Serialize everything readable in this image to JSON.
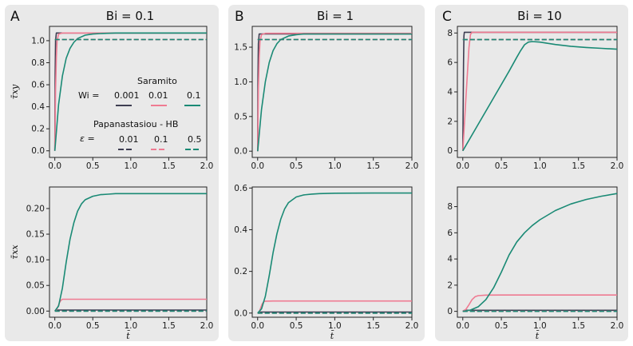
{
  "figure": {
    "colors": {
      "wi_0_001": "#3e3e52",
      "wi_0_01": "#ef7b92",
      "wi_0_1": "#1a8a75"
    },
    "ylabel_top": "τ̄xy",
    "ylabel_bottom": "τ̄xx",
    "xlabel": "t̄"
  },
  "legend": {
    "saramito_title": "Saramito",
    "wi_label": "Wi =",
    "wi_values": [
      "0.001",
      "0.01",
      "0.1"
    ],
    "ph_title": "Papanastasiou - HB",
    "eps_label": "ε =",
    "eps_values": [
      "0.01",
      "0.1",
      "0.5"
    ]
  },
  "chart_data": [
    {
      "panel": "A",
      "title": "Bi = 0.1",
      "row": "top",
      "type": "line",
      "ylabel": "τ̄xy",
      "xlabel": "",
      "xlim": [
        -0.07,
        2.0
      ],
      "ylim": [
        -0.06,
        1.13
      ],
      "xticks": [
        0.0,
        0.5,
        1.0,
        1.5,
        2.0
      ],
      "xticklabels": [
        "0.0",
        "0.5",
        "1.0",
        "1.5",
        "2.0"
      ],
      "yticks": [
        0.0,
        0.2,
        0.4,
        0.6,
        0.8,
        1.0
      ],
      "yticklabels": [
        "0.0",
        "0.2",
        "0.4",
        "0.6",
        "0.8",
        "1.0"
      ],
      "series": [
        {
          "name": "Saramito Wi=0.001",
          "style": "solid",
          "color": "#3e3e52",
          "x": [
            0,
            0.005,
            0.01,
            0.02,
            2.0
          ],
          "y": [
            0,
            0.7,
            1.0,
            1.07,
            1.07
          ]
        },
        {
          "name": "Saramito Wi=0.01",
          "style": "solid",
          "color": "#ef7b92",
          "x": [
            0,
            0.01,
            0.02,
            0.03,
            0.05,
            0.1,
            2.0
          ],
          "y": [
            0,
            0.55,
            0.85,
            1.0,
            1.06,
            1.07,
            1.07
          ]
        },
        {
          "name": "Saramito Wi=0.1",
          "style": "solid",
          "color": "#1a8a75",
          "x": [
            0,
            0.05,
            0.1,
            0.15,
            0.2,
            0.25,
            0.3,
            0.4,
            0.5,
            0.6,
            0.8,
            1.0,
            1.5,
            2.0
          ],
          "y": [
            0,
            0.42,
            0.68,
            0.84,
            0.93,
            0.985,
            1.02,
            1.05,
            1.06,
            1.065,
            1.07,
            1.07,
            1.07,
            1.07
          ]
        },
        {
          "name": "Papanastasiou-HB eps=0.01",
          "style": "dashed",
          "color": "#3e3e52",
          "x": [
            0.0,
            2.0
          ],
          "y": [
            1.01,
            1.01
          ]
        },
        {
          "name": "Papanastasiou-HB eps=0.1",
          "style": "dashed",
          "color": "#ef7b92",
          "x": [
            0.0,
            2.0
          ],
          "y": [
            1.01,
            1.01
          ]
        },
        {
          "name": "Papanastasiou-HB eps=0.5",
          "style": "dashed",
          "color": "#1a8a75",
          "x": [
            0.0,
            2.0
          ],
          "y": [
            1.01,
            1.01
          ]
        }
      ]
    },
    {
      "panel": "B",
      "title": "Bi = 1",
      "row": "top",
      "type": "line",
      "ylabel": "",
      "xlabel": "",
      "xlim": [
        -0.07,
        2.0
      ],
      "ylim": [
        -0.09,
        1.8
      ],
      "xticks": [
        0.0,
        0.5,
        1.0,
        1.5,
        2.0
      ],
      "xticklabels": [
        "0.0",
        "0.5",
        "1.0",
        "1.5",
        "2.0"
      ],
      "yticks": [
        0.0,
        0.5,
        1.0,
        1.5
      ],
      "yticklabels": [
        "0.0",
        "0.5",
        "1.0",
        "1.5"
      ],
      "series": [
        {
          "name": "Saramito Wi=0.001",
          "style": "solid",
          "color": "#3e3e52",
          "x": [
            0,
            0.005,
            0.01,
            0.02,
            2.0
          ],
          "y": [
            0,
            1.1,
            1.55,
            1.69,
            1.69
          ]
        },
        {
          "name": "Saramito Wi=0.01",
          "style": "solid",
          "color": "#ef7b92",
          "x": [
            0,
            0.01,
            0.02,
            0.03,
            0.05,
            0.1,
            2.0
          ],
          "y": [
            0,
            0.9,
            1.35,
            1.58,
            1.68,
            1.7,
            1.7
          ]
        },
        {
          "name": "Saramito Wi=0.1",
          "style": "solid",
          "color": "#1a8a75",
          "x": [
            0,
            0.05,
            0.1,
            0.15,
            0.2,
            0.25,
            0.3,
            0.4,
            0.5,
            0.6,
            0.8,
            1.0,
            1.5,
            2.0
          ],
          "y": [
            0,
            0.6,
            1.0,
            1.28,
            1.45,
            1.55,
            1.61,
            1.66,
            1.68,
            1.69,
            1.69,
            1.69,
            1.69,
            1.69
          ]
        },
        {
          "name": "Papanastasiou-HB eps=0.01",
          "style": "dashed",
          "color": "#3e3e52",
          "x": [
            0.0,
            2.0
          ],
          "y": [
            1.61,
            1.61
          ]
        },
        {
          "name": "Papanastasiou-HB eps=0.1",
          "style": "dashed",
          "color": "#ef7b92",
          "x": [
            0.0,
            2.0
          ],
          "y": [
            1.61,
            1.61
          ]
        },
        {
          "name": "Papanastasiou-HB eps=0.5",
          "style": "dashed",
          "color": "#1a8a75",
          "x": [
            0.0,
            2.0
          ],
          "y": [
            1.61,
            1.61
          ]
        }
      ]
    },
    {
      "panel": "C",
      "title": "Bi = 10",
      "row": "top",
      "type": "line",
      "ylabel": "",
      "xlabel": "",
      "xlim": [
        -0.07,
        2.0
      ],
      "ylim": [
        -0.45,
        8.45
      ],
      "xticks": [
        0.0,
        0.5,
        1.0,
        1.5,
        2.0
      ],
      "xticklabels": [
        "0.0",
        "0.5",
        "1.0",
        "1.5",
        "2.0"
      ],
      "yticks": [
        0,
        2,
        4,
        6,
        8
      ],
      "yticklabels": [
        "0",
        "2",
        "4",
        "6",
        "8"
      ],
      "series": [
        {
          "name": "Saramito Wi=0.001",
          "style": "solid",
          "color": "#3e3e52",
          "x": [
            0,
            0.01,
            0.015,
            0.02,
            2.0
          ],
          "y": [
            0,
            6.0,
            7.8,
            8.05,
            8.05
          ]
        },
        {
          "name": "Saramito Wi=0.01",
          "style": "solid",
          "color": "#ef7b92",
          "x": [
            0,
            0.04,
            0.08,
            0.1,
            0.12,
            2.0
          ],
          "y": [
            0,
            3.5,
            7.0,
            7.9,
            8.05,
            8.05
          ]
        },
        {
          "name": "Saramito Wi=0.1",
          "style": "solid",
          "color": "#1a8a75",
          "x": [
            0,
            0.2,
            0.4,
            0.6,
            0.7,
            0.75,
            0.8,
            0.85,
            0.9,
            1.0,
            1.1,
            1.2,
            1.4,
            1.6,
            1.8,
            2.0
          ],
          "y": [
            0,
            1.8,
            3.6,
            5.4,
            6.35,
            6.8,
            7.2,
            7.38,
            7.42,
            7.38,
            7.3,
            7.22,
            7.1,
            7.02,
            6.96,
            6.9
          ]
        },
        {
          "name": "Papanastasiou-HB eps=0.01",
          "style": "dashed",
          "color": "#3e3e52",
          "x": [
            0.0,
            2.0
          ],
          "y": [
            7.55,
            7.55
          ]
        },
        {
          "name": "Papanastasiou-HB eps=0.1",
          "style": "dashed",
          "color": "#ef7b92",
          "x": [
            0.0,
            2.0
          ],
          "y": [
            7.55,
            7.55
          ]
        },
        {
          "name": "Papanastasiou-HB eps=0.5",
          "style": "dashed",
          "color": "#1a8a75",
          "x": [
            0.0,
            2.0
          ],
          "y": [
            7.55,
            7.55
          ]
        }
      ]
    },
    {
      "panel": "A",
      "title": "",
      "row": "bottom",
      "type": "line",
      "ylabel": "τ̄xx",
      "xlabel": "t̄",
      "xlim": [
        -0.07,
        2.0
      ],
      "ylim": [
        -0.012,
        0.242
      ],
      "xticks": [
        0.0,
        0.5,
        1.0,
        1.5,
        2.0
      ],
      "xticklabels": [
        "0.0",
        "0.5",
        "1.0",
        "1.5",
        "2.0"
      ],
      "yticks": [
        0.0,
        0.05,
        0.1,
        0.15,
        0.2
      ],
      "yticklabels": [
        "0.00",
        "0.05",
        "0.10",
        "0.15",
        "0.20"
      ],
      "series": [
        {
          "name": "Saramito Wi=0.001",
          "style": "solid",
          "color": "#3e3e52",
          "x": [
            0,
            0.02,
            2.0
          ],
          "y": [
            0,
            0.002,
            0.002
          ]
        },
        {
          "name": "Saramito Wi=0.01",
          "style": "solid",
          "color": "#ef7b92",
          "x": [
            0,
            0.02,
            0.04,
            0.06,
            0.08,
            0.1,
            2.0
          ],
          "y": [
            0,
            0.002,
            0.008,
            0.016,
            0.021,
            0.023,
            0.023
          ]
        },
        {
          "name": "Saramito Wi=0.1",
          "style": "solid",
          "color": "#1a8a75",
          "x": [
            0,
            0.05,
            0.1,
            0.15,
            0.2,
            0.25,
            0.3,
            0.35,
            0.4,
            0.5,
            0.6,
            0.7,
            0.8,
            1.0,
            1.5,
            2.0
          ],
          "y": [
            0,
            0.01,
            0.045,
            0.095,
            0.14,
            0.172,
            0.195,
            0.209,
            0.217,
            0.224,
            0.227,
            0.228,
            0.229,
            0.229,
            0.229,
            0.229
          ]
        },
        {
          "name": "Papanastasiou-HB eps=0.01",
          "style": "dashed",
          "color": "#3e3e52",
          "x": [
            0.0,
            2.0
          ],
          "y": [
            0.0,
            0.0
          ]
        },
        {
          "name": "Papanastasiou-HB eps=0.1",
          "style": "dashed",
          "color": "#ef7b92",
          "x": [
            0.0,
            2.0
          ],
          "y": [
            0.0,
            0.0
          ]
        },
        {
          "name": "Papanastasiou-HB eps=0.5",
          "style": "dashed",
          "color": "#1a8a75",
          "x": [
            0.0,
            2.0
          ],
          "y": [
            0.0,
            0.0
          ]
        }
      ]
    },
    {
      "panel": "B",
      "title": "",
      "row": "bottom",
      "type": "line",
      "ylabel": "",
      "xlabel": "t̄",
      "xlim": [
        -0.07,
        2.0
      ],
      "ylim": [
        -0.02,
        0.605
      ],
      "xticks": [
        0.0,
        0.5,
        1.0,
        1.5,
        2.0
      ],
      "xticklabels": [
        "0.0",
        "0.5",
        "1.0",
        "1.5",
        "2.0"
      ],
      "yticks": [
        0.0,
        0.2,
        0.4,
        0.6
      ],
      "yticklabels": [
        "0.0",
        "0.2",
        "0.4",
        "0.6"
      ],
      "series": [
        {
          "name": "Saramito Wi=0.001",
          "style": "solid",
          "color": "#3e3e52",
          "x": [
            0,
            0.02,
            2.0
          ],
          "y": [
            0,
            0.005,
            0.005
          ]
        },
        {
          "name": "Saramito Wi=0.01",
          "style": "solid",
          "color": "#ef7b92",
          "x": [
            0,
            0.02,
            0.04,
            0.06,
            0.08,
            0.1,
            0.2,
            1.0,
            2.0
          ],
          "y": [
            0,
            0.005,
            0.025,
            0.045,
            0.054,
            0.057,
            0.058,
            0.058,
            0.058
          ]
        },
        {
          "name": "Saramito Wi=0.1",
          "style": "solid",
          "color": "#1a8a75",
          "x": [
            0,
            0.05,
            0.1,
            0.15,
            0.2,
            0.25,
            0.3,
            0.35,
            0.4,
            0.5,
            0.6,
            0.7,
            0.8,
            1.0,
            1.5,
            2.0
          ],
          "y": [
            0,
            0.02,
            0.08,
            0.18,
            0.29,
            0.38,
            0.45,
            0.5,
            0.53,
            0.557,
            0.567,
            0.571,
            0.573,
            0.575,
            0.576,
            0.576
          ]
        },
        {
          "name": "Papanastasiou-HB eps=0.01",
          "style": "dashed",
          "color": "#3e3e52",
          "x": [
            0.0,
            2.0
          ],
          "y": [
            0.0,
            0.0
          ]
        },
        {
          "name": "Papanastasiou-HB eps=0.1",
          "style": "dashed",
          "color": "#ef7b92",
          "x": [
            0.0,
            2.0
          ],
          "y": [
            0.0,
            0.0
          ]
        },
        {
          "name": "Papanastasiou-HB eps=0.5",
          "style": "dashed",
          "color": "#1a8a75",
          "x": [
            0.0,
            2.0
          ],
          "y": [
            0.0,
            0.0
          ]
        }
      ]
    },
    {
      "panel": "C",
      "title": "",
      "row": "bottom",
      "type": "line",
      "ylabel": "",
      "xlabel": "t̄",
      "xlim": [
        -0.07,
        2.0
      ],
      "ylim": [
        -0.45,
        9.5
      ],
      "xticks": [
        0.0,
        0.5,
        1.0,
        1.5,
        2.0
      ],
      "xticklabels": [
        "0.0",
        "0.5",
        "1.0",
        "1.5",
        "2.0"
      ],
      "yticks": [
        0,
        2,
        4,
        6,
        8
      ],
      "yticklabels": [
        "0",
        "2",
        "4",
        "6",
        "8"
      ],
      "series": [
        {
          "name": "Saramito Wi=0.001",
          "style": "solid",
          "color": "#3e3e52",
          "x": [
            0,
            0.02,
            2.0
          ],
          "y": [
            0,
            0.08,
            0.08
          ]
        },
        {
          "name": "Saramito Wi=0.01",
          "style": "solid",
          "color": "#ef7b92",
          "x": [
            0,
            0.04,
            0.08,
            0.12,
            0.16,
            0.2,
            0.3,
            0.5,
            1.0,
            2.0
          ],
          "y": [
            0,
            0.15,
            0.5,
            0.9,
            1.12,
            1.2,
            1.24,
            1.25,
            1.25,
            1.25
          ]
        },
        {
          "name": "Saramito Wi=0.1",
          "style": "solid",
          "color": "#1a8a75",
          "x": [
            0,
            0.1,
            0.2,
            0.3,
            0.4,
            0.5,
            0.6,
            0.7,
            0.8,
            0.9,
            1.0,
            1.2,
            1.4,
            1.6,
            1.8,
            2.0
          ],
          "y": [
            0,
            0.1,
            0.35,
            0.9,
            1.8,
            3.0,
            4.3,
            5.3,
            6.0,
            6.55,
            7.0,
            7.7,
            8.2,
            8.55,
            8.8,
            9.0
          ]
        },
        {
          "name": "Papanastasiou-HB eps=0.01",
          "style": "dashed",
          "color": "#3e3e52",
          "x": [
            0.0,
            2.0
          ],
          "y": [
            0.0,
            0.0
          ]
        },
        {
          "name": "Papanastasiou-HB eps=0.1",
          "style": "dashed",
          "color": "#ef7b92",
          "x": [
            0.0,
            2.0
          ],
          "y": [
            0.0,
            0.0
          ]
        },
        {
          "name": "Papanastasiou-HB eps=0.5",
          "style": "dashed",
          "color": "#1a8a75",
          "x": [
            0.0,
            2.0
          ],
          "y": [
            0.0,
            0.0
          ]
        }
      ]
    }
  ]
}
